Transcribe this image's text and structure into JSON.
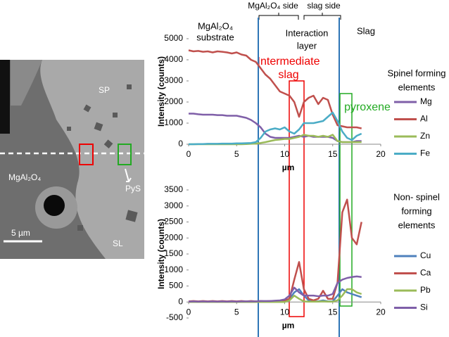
{
  "micrograph": {
    "labels": {
      "sp": "SP",
      "substrate": "MgAl₂O₄",
      "pys": "PyS",
      "sl": "SL",
      "scale": "5 µm"
    }
  },
  "annotations": {
    "side_left": "MgAl₂O₄ side",
    "side_right": "slag side",
    "substrate": [
      "MgAl₂O₄",
      "substrate"
    ],
    "interaction": [
      "Interaction",
      "layer"
    ],
    "slag": "Slag",
    "intermediate": [
      "Intermediate",
      "slag"
    ],
    "pyroxene": "pyroxene"
  },
  "chart_data": [
    {
      "type": "line",
      "legend_title": [
        "Spinel forming",
        "elements"
      ],
      "xlabel": "µm",
      "ylabel": "Intensity (counts)",
      "xlim": [
        0,
        20
      ],
      "xticks": [
        0,
        5,
        10,
        15,
        20
      ],
      "ylim": [
        0,
        5000
      ],
      "yticks": [
        0,
        1000,
        2000,
        3000,
        4000,
        5000
      ],
      "x": [
        0,
        0.5,
        1,
        1.5,
        2,
        2.5,
        3,
        3.5,
        4,
        4.5,
        5,
        5.5,
        6,
        6.5,
        7,
        7.5,
        8,
        8.5,
        9,
        9.5,
        10,
        10.5,
        11,
        11.5,
        12,
        12.5,
        13,
        13.5,
        14,
        14.5,
        15,
        15.5,
        16,
        16.5,
        17,
        17.5,
        18
      ],
      "series": [
        {
          "name": "Mg",
          "color": "#7f5fa8",
          "values": [
            1450,
            1450,
            1420,
            1400,
            1400,
            1400,
            1380,
            1380,
            1350,
            1350,
            1350,
            1300,
            1250,
            1150,
            1000,
            800,
            500,
            350,
            300,
            300,
            300,
            300,
            350,
            400,
            350,
            400,
            350,
            350,
            350,
            350,
            300,
            150,
            100,
            100,
            100,
            150,
            150
          ]
        },
        {
          "name": "Al",
          "color": "#c0504d",
          "values": [
            4450,
            4400,
            4420,
            4380,
            4400,
            4350,
            4400,
            4380,
            4350,
            4300,
            4350,
            4250,
            4200,
            4000,
            3900,
            3600,
            3300,
            3100,
            2800,
            2500,
            2400,
            2300,
            2000,
            1300,
            2000,
            2200,
            2300,
            1900,
            2200,
            2100,
            1400,
            900,
            850,
            800,
            800,
            800,
            750
          ]
        },
        {
          "name": "Zn",
          "color": "#9bbb59",
          "values": [
            0,
            0,
            0,
            0,
            0,
            0,
            0,
            0,
            0,
            0,
            0,
            0,
            10,
            20,
            30,
            60,
            100,
            150,
            200,
            220,
            250,
            250,
            300,
            350,
            450,
            400,
            400,
            350,
            400,
            350,
            450,
            150,
            100,
            100,
            100,
            100,
            100
          ]
        },
        {
          "name": "Fe",
          "color": "#4bacc6",
          "values": [
            0,
            0,
            10,
            10,
            20,
            20,
            20,
            30,
            30,
            30,
            40,
            40,
            50,
            60,
            100,
            300,
            600,
            700,
            750,
            700,
            800,
            600,
            500,
            700,
            1000,
            1000,
            1000,
            1050,
            1100,
            1300,
            1500,
            1100,
            600,
            300,
            200,
            400,
            500
          ]
        }
      ]
    },
    {
      "type": "line",
      "legend_title": [
        "Non- spinel",
        "forming",
        "elements"
      ],
      "xlabel": "µm",
      "ylabel": "Intensity (counts)",
      "xlim": [
        0,
        20
      ],
      "xticks": [
        0,
        5,
        10,
        15,
        20
      ],
      "ylim": [
        -500,
        3500
      ],
      "yticks": [
        -500,
        0,
        500,
        1000,
        1500,
        2000,
        2500,
        3000,
        3500
      ],
      "x": [
        0,
        0.5,
        1,
        1.5,
        2,
        2.5,
        3,
        3.5,
        4,
        4.5,
        5,
        5.5,
        6,
        6.5,
        7,
        7.5,
        8,
        8.5,
        9,
        9.5,
        10,
        10.5,
        11,
        11.5,
        12,
        12.5,
        13,
        13.5,
        14,
        14.5,
        15,
        15.5,
        16,
        16.5,
        17,
        17.5,
        18
      ],
      "series": [
        {
          "name": "Cu",
          "color": "#4f81bd",
          "values": [
            0,
            0,
            0,
            0,
            0,
            0,
            0,
            0,
            0,
            0,
            0,
            0,
            0,
            0,
            0,
            0,
            0,
            0,
            0,
            0,
            0,
            100,
            300,
            400,
            200,
            50,
            20,
            20,
            50,
            20,
            20,
            200,
            400,
            300,
            250,
            200,
            150
          ]
        },
        {
          "name": "Ca",
          "color": "#c0504d",
          "values": [
            20,
            30,
            20,
            30,
            20,
            30,
            20,
            30,
            20,
            30,
            20,
            30,
            20,
            30,
            20,
            30,
            20,
            30,
            30,
            40,
            50,
            100,
            700,
            1250,
            400,
            100,
            50,
            100,
            350,
            100,
            100,
            600,
            2800,
            3200,
            2000,
            1800,
            2500
          ]
        },
        {
          "name": "Pb",
          "color": "#9bbb59",
          "values": [
            0,
            0,
            0,
            0,
            0,
            0,
            0,
            0,
            0,
            0,
            0,
            0,
            0,
            0,
            0,
            0,
            0,
            0,
            0,
            0,
            0,
            50,
            200,
            100,
            20,
            10,
            10,
            10,
            20,
            10,
            10,
            50,
            200,
            400,
            400,
            300,
            250
          ]
        },
        {
          "name": "Si",
          "color": "#7f5fa8",
          "values": [
            10,
            20,
            10,
            20,
            10,
            20,
            10,
            20,
            10,
            20,
            10,
            20,
            20,
            20,
            20,
            30,
            30,
            30,
            40,
            50,
            80,
            200,
            450,
            300,
            200,
            200,
            200,
            180,
            200,
            200,
            250,
            600,
            700,
            750,
            780,
            800,
            780
          ]
        }
      ]
    }
  ]
}
